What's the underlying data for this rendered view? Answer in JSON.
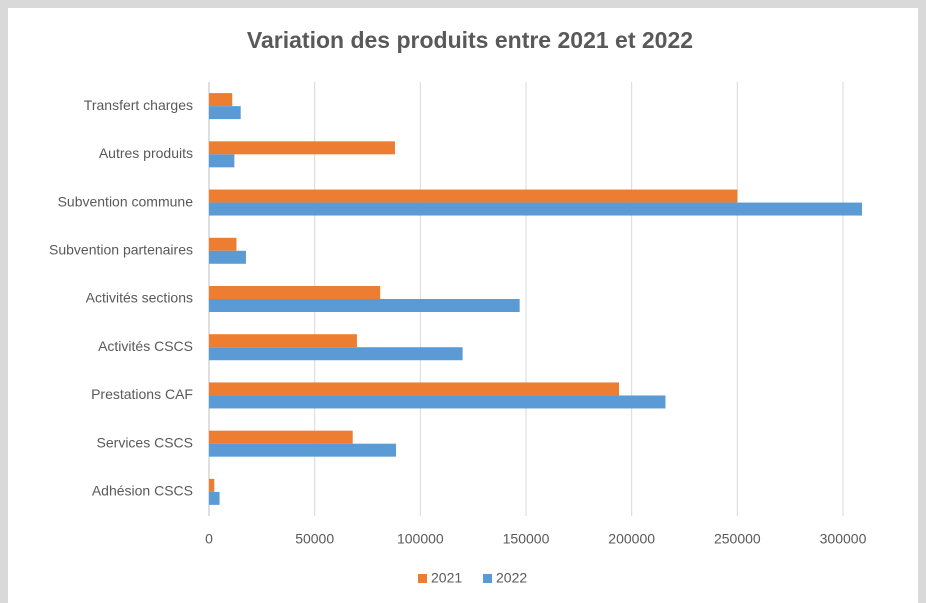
{
  "chart_data": {
    "type": "barh",
    "title": "Variation des produits entre 2021 et 2022",
    "categories": [
      "Transfert charges",
      "Autres produits",
      "Subvention commune",
      "Subvention partenaires",
      "Activités sections",
      "Activités CSCS",
      "Prestations CAF",
      "Services CSCS",
      "Adhésion CSCS"
    ],
    "series": [
      {
        "name": "2021",
        "color": "#ed7d31",
        "values": [
          11000,
          88000,
          250000,
          13000,
          81000,
          70000,
          194000,
          68000,
          2500
        ]
      },
      {
        "name": "2022",
        "color": "#5b9bd5",
        "values": [
          15000,
          12000,
          309000,
          17500,
          147000,
          120000,
          216000,
          88500,
          5000
        ]
      }
    ],
    "xlim": [
      0,
      300000
    ],
    "xticks": [
      0,
      50000,
      100000,
      150000,
      200000,
      250000,
      300000
    ],
    "grid": true,
    "legend": "bottom"
  }
}
